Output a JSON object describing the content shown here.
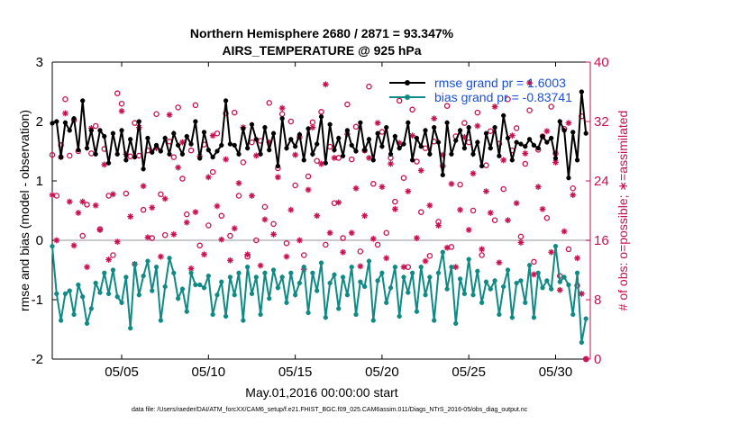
{
  "chart_data": {
    "type": "line",
    "title": [
      "Northern Hemisphere 2680 / 2871 = 93.347%",
      "AIRS_TEMPERATURE @ 925 hPa"
    ],
    "xlabel": "May.01,2016 00:00:00 start",
    "ylabel": "rmse and bias (model - observation)",
    "ylabel_right": "# of obs: o=possible; ∗=assimilated",
    "xlim": [
      1.0,
      32.0
    ],
    "ylim": [
      -2,
      3
    ],
    "ylim_right": [
      0,
      40
    ],
    "x_ticks": [
      5,
      10,
      15,
      20,
      25,
      30
    ],
    "x_tick_labels": [
      "05/05",
      "05/10",
      "05/15",
      "05/20",
      "05/25",
      "05/30"
    ],
    "y_ticks": [
      -2,
      -1,
      0,
      1,
      2,
      3
    ],
    "y_tick_labels": [
      "-2",
      "-1",
      "0",
      "1",
      "2",
      "3"
    ],
    "y_right_ticks": [
      0,
      8,
      16,
      24,
      32,
      40
    ],
    "y_right_tick_labels": [
      "0",
      "8",
      "16",
      "24",
      "32",
      "40"
    ],
    "zero_line": 0,
    "legend_position": "top-right",
    "x": [
      1.0,
      1.25,
      1.5,
      1.75,
      2.0,
      2.25,
      2.5,
      2.75,
      3.0,
      3.25,
      3.5,
      3.75,
      4.0,
      4.25,
      4.5,
      4.75,
      5.0,
      5.25,
      5.5,
      5.75,
      6.0,
      6.25,
      6.5,
      6.75,
      7.0,
      7.25,
      7.5,
      7.75,
      8.0,
      8.25,
      8.5,
      8.75,
      9.0,
      9.25,
      9.5,
      9.75,
      10.0,
      10.25,
      10.5,
      10.75,
      11.0,
      11.25,
      11.5,
      11.75,
      12.0,
      12.25,
      12.5,
      12.75,
      13.0,
      13.25,
      13.5,
      13.75,
      14.0,
      14.25,
      14.5,
      14.75,
      15.0,
      15.25,
      15.5,
      15.75,
      16.0,
      16.25,
      16.5,
      16.75,
      17.0,
      17.25,
      17.5,
      17.75,
      18.0,
      18.25,
      18.5,
      18.75,
      19.0,
      19.25,
      19.5,
      19.75,
      20.0,
      20.25,
      20.5,
      20.75,
      21.0,
      21.25,
      21.5,
      21.75,
      22.0,
      22.25,
      22.5,
      22.75,
      23.0,
      23.25,
      23.5,
      23.75,
      24.0,
      24.25,
      24.5,
      24.75,
      25.0,
      25.25,
      25.5,
      25.75,
      26.0,
      26.25,
      26.5,
      26.75,
      27.0,
      27.25,
      27.5,
      27.75,
      28.0,
      28.25,
      28.5,
      28.75,
      29.0,
      29.25,
      29.5,
      29.75,
      30.0,
      30.25,
      30.5,
      30.75,
      31.0,
      31.25,
      31.5,
      31.75
    ],
    "series": [
      {
        "name": "rmse grand pr = 1.6003",
        "color": "#000000",
        "marker": "filled-circle",
        "values": [
          1.97,
          2.0,
          1.4,
          1.98,
          1.85,
          2.05,
          1.52,
          2.35,
          1.55,
          1.85,
          1.45,
          1.85,
          1.75,
          1.3,
          1.8,
          1.45,
          1.85,
          1.35,
          1.7,
          1.4,
          2.0,
          1.2,
          1.72,
          1.48,
          1.6,
          1.5,
          1.72,
          1.45,
          1.8,
          1.6,
          1.45,
          1.75,
          1.62,
          2.0,
          1.38,
          1.82,
          1.52,
          1.4,
          1.5,
          1.6,
          2.35,
          1.62,
          1.6,
          1.45,
          1.88,
          1.55,
          1.95,
          1.7,
          1.45,
          1.9,
          1.52,
          1.8,
          1.25,
          2.05,
          1.55,
          1.7,
          1.58,
          1.78,
          1.35,
          1.88,
          1.45,
          1.62,
          2.08,
          1.3,
          1.95,
          1.52,
          1.72,
          1.42,
          1.85,
          1.6,
          1.5,
          1.98,
          1.52,
          1.7,
          1.35,
          1.8,
          1.58,
          1.9,
          1.45,
          1.75,
          1.55,
          1.62,
          1.98,
          1.35,
          1.72,
          1.58,
          1.85,
          1.45,
          1.9,
          1.65,
          1.1,
          1.98,
          1.45,
          1.68,
          1.85,
          1.55,
          1.9,
          1.45,
          1.65,
          1.25,
          1.8,
          1.55,
          1.9,
          1.42,
          2.1,
          1.72,
          1.35,
          1.65,
          1.62,
          1.58,
          1.7,
          1.6,
          1.55,
          1.75,
          1.65,
          1.72,
          1.38,
          2.0,
          1.85,
          1.05,
          1.82,
          1.35,
          2.5,
          1.8
        ]
      },
      {
        "name": "bias grand pr = -0.83741",
        "color": "#0f8a84",
        "marker": "filled-circle",
        "values": [
          -0.1,
          -0.9,
          -1.35,
          -0.9,
          -0.85,
          -1.25,
          -0.75,
          -0.95,
          -1.4,
          -1.15,
          -0.72,
          -0.88,
          -0.55,
          -0.9,
          -0.5,
          -0.95,
          -1.05,
          -0.62,
          -1.48,
          -0.4,
          -0.92,
          -0.6,
          -0.35,
          -0.85,
          -0.45,
          -1.35,
          -0.78,
          -0.3,
          -0.55,
          -0.98,
          -0.82,
          -1.2,
          -0.55,
          -0.75,
          -0.75,
          -0.8,
          -0.6,
          -1.25,
          -0.92,
          -0.7,
          -1.28,
          -0.62,
          -0.92,
          -0.55,
          -1.35,
          -0.45,
          -0.9,
          -0.62,
          -1.25,
          -0.55,
          -0.98,
          -0.5,
          -0.8,
          -0.62,
          -1.05,
          -0.55,
          -0.92,
          -0.72,
          -0.45,
          -1.22,
          -0.55,
          -0.85,
          -0.38,
          -1.3,
          -0.72,
          -0.58,
          -1.15,
          -0.62,
          -0.92,
          -0.45,
          -1.25,
          -0.7,
          -0.78,
          -0.35,
          -1.35,
          -0.68,
          -0.55,
          -1.05,
          -0.8,
          -0.45,
          -1.28,
          -0.62,
          -0.88,
          -0.55,
          -1.2,
          -0.45,
          -0.92,
          -0.62,
          -1.35,
          -0.55,
          -0.2,
          -0.82,
          -0.45,
          -1.4,
          -0.65,
          -0.9,
          -0.32,
          -0.92,
          -0.52,
          -1.05,
          -0.7,
          -0.82,
          -0.68,
          -1.25,
          -0.78,
          -0.5,
          -1.3,
          -0.72,
          -0.68,
          -1.05,
          -0.42,
          -1.3,
          -0.55,
          -0.8,
          -0.68,
          -0.82,
          -0.1,
          -0.7,
          -0.62,
          -0.75,
          -1.25,
          -0.55,
          -1.72,
          -1.32
        ]
      }
    ],
    "obs_possible": {
      "name": "# of obs possible",
      "marker": "open-circle",
      "color": "#c8104f",
      "values": [
        27.5,
        22.0,
        28.8,
        35.0,
        27.4,
        32.2,
        28.0,
        16.6,
        20.8,
        27.7,
        31.4,
        17.5,
        28.3,
        22.0,
        14.0,
        35.8,
        34.4,
        22.3,
        27.3,
        31.8,
        27.4,
        20.1,
        28.1,
        16.3,
        33.0,
        22.2,
        16.7,
        29.3,
        27.2,
        33.9,
        24.3,
        19.5,
        28.1,
        34.2,
        15.3,
        28.9,
        18.0,
        25.2,
        30.4,
        19.3,
        33.1,
        16.6,
        33.2,
        22.0,
        26.5,
        13.8,
        29.2,
        16.0,
        29.4,
        20.5,
        34.5,
        18.2,
        25.7,
        33.0,
        15.6,
        32.0,
        23.4,
        29.9,
        14.0,
        24.6,
        31.9,
        26.7,
        33.3,
        15.4,
        28.6,
        21.0,
        27.1,
        16.3,
        34.3,
        26.9,
        31.3,
        14.5,
        28.1,
        36.7,
        23.6,
        15.4,
        30.6,
        17.0,
        27.1,
        21.2,
        34.8,
        24.4,
        12.4,
        33.6,
        26.6,
        19.8,
        28.4,
        13.9,
        29.3,
        18.5,
        26.0,
        34.1,
        15.1,
        30.0,
        23.5,
        31.8,
        29.2,
        20.0,
        33.2,
        14.0,
        26.1,
        30.7,
        18.7,
        29.0,
        22.9,
        35.0,
        28.1,
        31.1,
        16.5,
        26.3,
        33.5,
        13.1,
        28.2,
        30.0,
        19.0,
        34.0,
        27.7,
        11.2,
        31.0,
        14.8,
        23.0,
        9.9,
        32.7,
        0.0
      ]
    },
    "obs_assimilated": {
      "name": "# of obs assimilated",
      "marker": "asterisk",
      "color": "#c8104f",
      "values": [
        22.1,
        16.0,
        27.2,
        33.1,
        21.2,
        15.3,
        19.7,
        21.2,
        12.4,
        31.1,
        20.7,
        17.4,
        26.2,
        13.4,
        22.2,
        15.8,
        33.4,
        27.6,
        19.2,
        12.8,
        31.2,
        23.3,
        16.4,
        20.4,
        28.4,
        13.8,
        21.6,
        32.9,
        16.8,
        25.8,
        29.2,
        18.4,
        12.2,
        19.8,
        27.3,
        14.1,
        24.5,
        30.1,
        20.6,
        16.1,
        26.9,
        13.3,
        17.6,
        23.7,
        31.2,
        14.1,
        22.0,
        27.4,
        12.6,
        18.8,
        29.2,
        16.8,
        24.5,
        33.8,
        13.8,
        20.1,
        27.5,
        16.0,
        12.1,
        22.8,
        31.2,
        19.3,
        26.3,
        37.0,
        17.0,
        27.1,
        21.1,
        14.4,
        30.3,
        17.0,
        23.0,
        12.5,
        19.3,
        27.1,
        16.2,
        31.8,
        23.2,
        13.6,
        26.3,
        20.2,
        29.1,
        12.4,
        22.6,
        30.1,
        16.3,
        25.4,
        13.2,
        20.7,
        32.4,
        18.0,
        27.5,
        15.0,
        23.6,
        12.4,
        20.1,
        29.9,
        17.4,
        25.0,
        31.4,
        14.8,
        22.6,
        19.7,
        34.0,
        13.0,
        26.8,
        18.7,
        30.1,
        21.0,
        15.7,
        27.7,
        37.2,
        11.4,
        23.2,
        20.2,
        30.7,
        14.4,
        26.5,
        9.3,
        17.2,
        31.8,
        22.1,
        13.6,
        8.8,
        0.0
      ]
    }
  },
  "footnote": "data file: /Users/raeder/DAI/ATM_forcXX/CAM6_setup/f.e21.FHIST_BGC.f09_025.CAM6assim.011/Diags_NTrS_2016-05/obs_diag_output.nc"
}
